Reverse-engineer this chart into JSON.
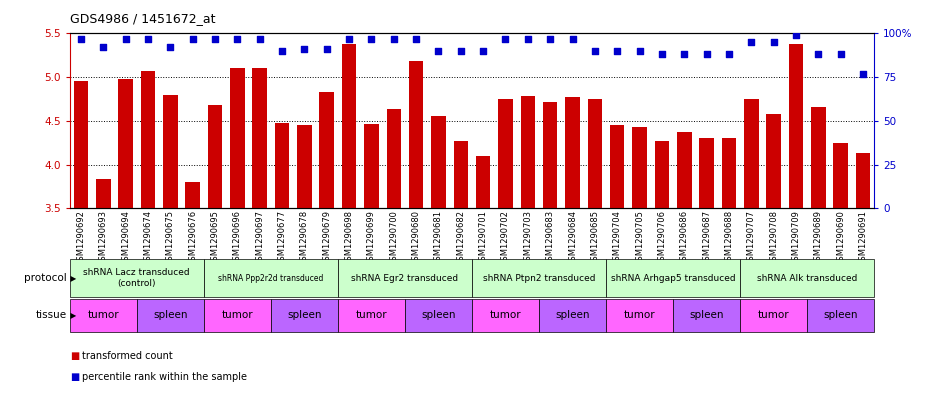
{
  "title": "GDS4986 / 1451672_at",
  "samples": [
    "GSM1290692",
    "GSM1290693",
    "GSM1290694",
    "GSM1290674",
    "GSM1290675",
    "GSM1290676",
    "GSM1290695",
    "GSM1290696",
    "GSM1290697",
    "GSM1290677",
    "GSM1290678",
    "GSM1290679",
    "GSM1290698",
    "GSM1290699",
    "GSM1290700",
    "GSM1290680",
    "GSM1290681",
    "GSM1290682",
    "GSM1290701",
    "GSM1290702",
    "GSM1290703",
    "GSM1290683",
    "GSM1290684",
    "GSM1290685",
    "GSM1290704",
    "GSM1290705",
    "GSM1290706",
    "GSM1290686",
    "GSM1290687",
    "GSM1290688",
    "GSM1290707",
    "GSM1290708",
    "GSM1290709",
    "GSM1290689",
    "GSM1290690",
    "GSM1290691"
  ],
  "bar_values": [
    4.95,
    3.83,
    4.98,
    5.07,
    4.8,
    3.8,
    4.68,
    5.1,
    5.1,
    4.47,
    4.45,
    4.83,
    5.38,
    4.46,
    4.64,
    5.18,
    4.55,
    4.27,
    4.1,
    4.75,
    4.78,
    4.72,
    4.77,
    4.75,
    4.45,
    4.43,
    4.27,
    4.37,
    4.3,
    4.3,
    4.75,
    4.58,
    5.38,
    4.66,
    4.25,
    4.13
  ],
  "percentile_values": [
    97,
    92,
    97,
    97,
    92,
    97,
    97,
    97,
    97,
    90,
    91,
    91,
    97,
    97,
    97,
    97,
    90,
    90,
    90,
    97,
    97,
    97,
    97,
    90,
    90,
    90,
    88,
    88,
    88,
    88,
    95,
    95,
    99,
    88,
    88,
    77
  ],
  "ylim": [
    3.5,
    5.5
  ],
  "yticks": [
    3.5,
    4.0,
    4.5,
    5.0,
    5.5
  ],
  "y2lim": [
    0,
    100
  ],
  "y2ticks": [
    0,
    25,
    50,
    75,
    100
  ],
  "bar_color": "#CC0000",
  "dot_color": "#0000CC",
  "plot_bg": "#FFFFFF",
  "protocols": [
    {
      "label": "shRNA Lacz transduced\n(control)",
      "start": 0,
      "end": 6,
      "color": "#CCFFCC"
    },
    {
      "label": "shRNA Ppp2r2d transduced",
      "start": 6,
      "end": 12,
      "color": "#CCFFCC"
    },
    {
      "label": "shRNA Egr2 transduced",
      "start": 12,
      "end": 18,
      "color": "#CCFFCC"
    },
    {
      "label": "shRNA Ptpn2 transduced",
      "start": 18,
      "end": 24,
      "color": "#CCFFCC"
    },
    {
      "label": "shRNA Arhgap5 transduced",
      "start": 24,
      "end": 30,
      "color": "#CCFFCC"
    },
    {
      "label": "shRNA Alk transduced",
      "start": 30,
      "end": 36,
      "color": "#CCFFCC"
    }
  ],
  "tissues": [
    {
      "label": "tumor",
      "start": 0,
      "end": 3,
      "color": "#FF66FF"
    },
    {
      "label": "spleen",
      "start": 3,
      "end": 6,
      "color": "#BB66FF"
    },
    {
      "label": "tumor",
      "start": 6,
      "end": 9,
      "color": "#FF66FF"
    },
    {
      "label": "spleen",
      "start": 9,
      "end": 12,
      "color": "#BB66FF"
    },
    {
      "label": "tumor",
      "start": 12,
      "end": 15,
      "color": "#FF66FF"
    },
    {
      "label": "spleen",
      "start": 15,
      "end": 18,
      "color": "#BB66FF"
    },
    {
      "label": "tumor",
      "start": 18,
      "end": 21,
      "color": "#FF66FF"
    },
    {
      "label": "spleen",
      "start": 21,
      "end": 24,
      "color": "#BB66FF"
    },
    {
      "label": "tumor",
      "start": 24,
      "end": 27,
      "color": "#FF66FF"
    },
    {
      "label": "spleen",
      "start": 27,
      "end": 30,
      "color": "#BB66FF"
    },
    {
      "label": "tumor",
      "start": 30,
      "end": 33,
      "color": "#FF66FF"
    },
    {
      "label": "spleen",
      "start": 33,
      "end": 36,
      "color": "#BB66FF"
    }
  ],
  "bg_color": "#FFFFFF",
  "tick_label_fontsize": 6.0,
  "protocol_fontsize": 6.5,
  "tissue_fontsize": 7.5
}
